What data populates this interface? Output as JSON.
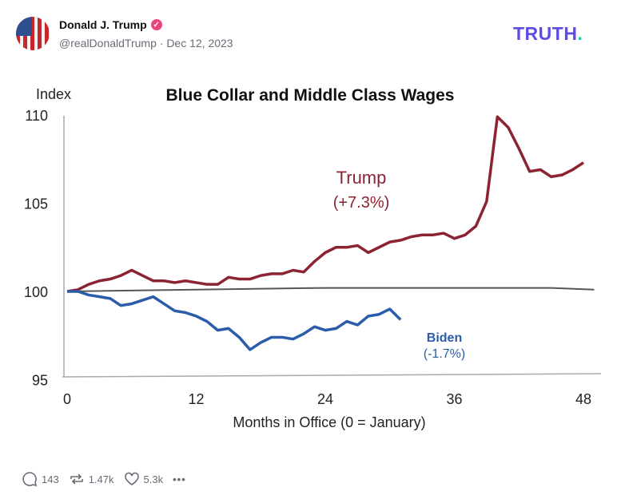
{
  "post": {
    "author_name": "Donald J. Trump",
    "handle": "@realDonaldTrump",
    "date": "Dec 12, 2023",
    "verified": true,
    "brand_logo": "TRUTH.",
    "brand_color": "#5d4ce6",
    "stats": {
      "replies": "143",
      "retruths": "1.47k",
      "likes": "5.3k"
    },
    "icons": {
      "reply": "speech-bubble-icon",
      "retruth": "repost-icon",
      "like": "heart-icon",
      "more": "more-dots-icon"
    }
  },
  "chart_data": {
    "type": "line",
    "title": "Blue Collar and Middle Class Wages",
    "ylabel": "Index",
    "xlabel": "Months in Office (0 = January)",
    "xlim": [
      0,
      48
    ],
    "ylim": [
      95,
      110
    ],
    "xticks": [
      "0",
      "12",
      "24",
      "36",
      "48"
    ],
    "yticks": [
      "95",
      "100",
      "105",
      "110"
    ],
    "grid": false,
    "series": [
      {
        "name": "Trump",
        "annotation": "(+7.3%)",
        "color": "#8b2332",
        "x": [
          0,
          1,
          2,
          3,
          4,
          5,
          6,
          7,
          8,
          9,
          10,
          11,
          12,
          13,
          14,
          15,
          16,
          17,
          18,
          19,
          20,
          21,
          22,
          23,
          24,
          25,
          26,
          27,
          28,
          29,
          30,
          31,
          32,
          33,
          34,
          35,
          36,
          37,
          38,
          39,
          40,
          41,
          42,
          43,
          44,
          45,
          46,
          47,
          48
        ],
        "values": [
          100,
          100.1,
          100.4,
          100.6,
          100.7,
          100.9,
          101.2,
          100.9,
          100.6,
          100.6,
          100.5,
          100.6,
          100.5,
          100.4,
          100.4,
          100.8,
          100.7,
          100.7,
          100.9,
          101.0,
          101.0,
          101.2,
          101.1,
          101.7,
          102.2,
          102.5,
          102.5,
          102.6,
          102.2,
          102.5,
          102.8,
          102.9,
          103.1,
          103.2,
          103.2,
          103.3,
          103.0,
          103.2,
          103.7,
          105.1,
          109.9,
          109.3,
          108.1,
          106.8,
          106.9,
          106.5,
          106.6,
          106.9,
          107.3
        ]
      },
      {
        "name": "Biden",
        "annotation": "(-1.7%)",
        "color": "#2a5caa",
        "x": [
          0,
          1,
          2,
          3,
          4,
          5,
          6,
          7,
          8,
          9,
          10,
          11,
          12,
          13,
          14,
          15,
          16,
          17,
          18,
          19,
          20,
          21,
          22,
          23,
          24,
          25,
          26,
          27,
          28,
          29,
          30,
          31
        ],
        "values": [
          100,
          100,
          99.8,
          99.7,
          99.6,
          99.2,
          99.3,
          99.5,
          99.7,
          99.3,
          98.9,
          98.8,
          98.6,
          98.3,
          97.8,
          97.9,
          97.4,
          96.7,
          97.1,
          97.4,
          97.4,
          97.3,
          97.6,
          98.0,
          97.8,
          97.9,
          98.3,
          98.1,
          98.6,
          98.7,
          99.0,
          98.4
        ]
      },
      {
        "color": "#555555",
        "x": [
          0,
          24,
          45,
          49
        ],
        "values": [
          100,
          100.2,
          100.2,
          100.1
        ]
      }
    ]
  }
}
